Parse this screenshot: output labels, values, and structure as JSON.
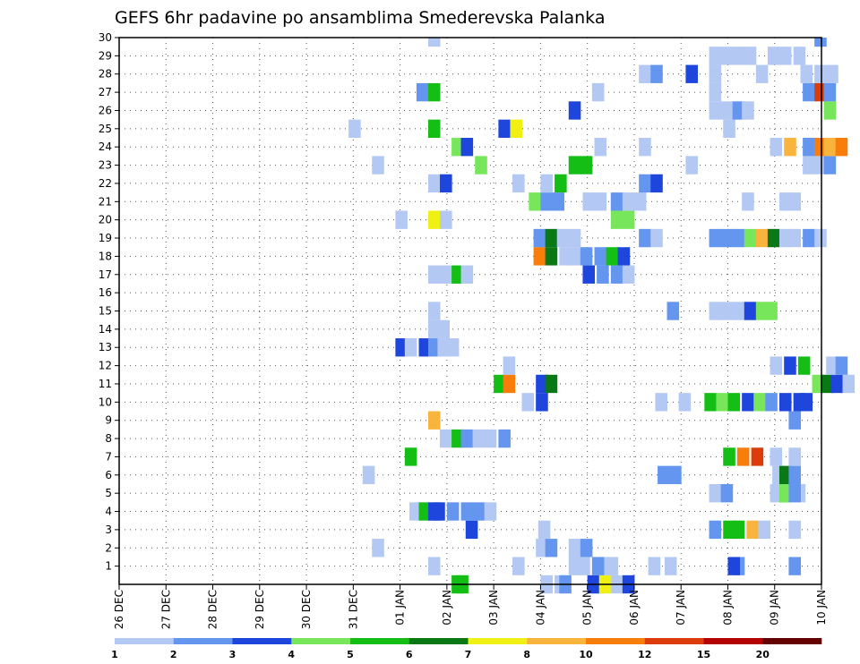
{
  "chart_data": {
    "type": "heatmap",
    "title": "GEFS 6hr padavine po ansamblima Smederevska Palanka",
    "x_tick_labels": [
      "26 DEC",
      "27 DEC",
      "28 DEC",
      "29 DEC",
      "30 DEC",
      "31 DEC",
      "01 JAN",
      "02 JAN",
      "03 JAN",
      "04 JAN",
      "05 JAN",
      "06 JAN",
      "07 JAN",
      "08 JAN",
      "09 JAN",
      "10 JAN"
    ],
    "y_tick_labels": [
      "1",
      "2",
      "3",
      "4",
      "5",
      "6",
      "7",
      "8",
      "9",
      "10",
      "11",
      "12",
      "13",
      "14",
      "15",
      "16",
      "17",
      "18",
      "19",
      "20",
      "21",
      "22",
      "23",
      "24",
      "25",
      "26",
      "27",
      "28",
      "29",
      "30"
    ],
    "x_range_days": [
      0,
      15
    ],
    "y_range": [
      0,
      30
    ],
    "grid": true,
    "color_levels": [
      "1",
      "2",
      "3",
      "4",
      "5",
      "6",
      "7",
      "8",
      "10",
      "12",
      "15",
      "20"
    ],
    "colors": [
      "#b4c8f4",
      "#6496f0",
      "#1e46dc",
      "#78e65a",
      "#14be14",
      "#0a7814",
      "#f0f014",
      "#f8b43c",
      "#f87d0a",
      "#dc3c0a",
      "#b40000",
      "#640000"
    ],
    "cells": [
      [
        9,
        -1,
        1
      ],
      [
        9.3,
        -1,
        1
      ],
      [
        10.5,
        -1,
        1
      ],
      [
        9.4,
        -1,
        2
      ],
      [
        10.1,
        -1,
        2
      ],
      [
        7.1,
        -1,
        5
      ],
      [
        7.2,
        -1,
        5
      ],
      [
        10,
        -1,
        3
      ],
      [
        10.75,
        -1,
        3
      ],
      [
        10.25,
        -1,
        7
      ],
      [
        6.6,
        0,
        1
      ],
      [
        8.4,
        0,
        1
      ],
      [
        9.6,
        0,
        1
      ],
      [
        9.8,
        0,
        1
      ],
      [
        10.1,
        0,
        1
      ],
      [
        10.25,
        0,
        1
      ],
      [
        10.4,
        0,
        1
      ],
      [
        11.3,
        0,
        1
      ],
      [
        11.65,
        0,
        1
      ],
      [
        10.1,
        0,
        2
      ],
      [
        13.1,
        0,
        2
      ],
      [
        14.3,
        0,
        2
      ],
      [
        13,
        0,
        3
      ],
      [
        5.4,
        1,
        1
      ],
      [
        8.9,
        1,
        1
      ],
      [
        9.6,
        1,
        1
      ],
      [
        9.1,
        1,
        2
      ],
      [
        9.85,
        1,
        2
      ],
      [
        8.95,
        2,
        1
      ],
      [
        12.6,
        2,
        2
      ],
      [
        12.9,
        2,
        5
      ],
      [
        13.1,
        2,
        5
      ],
      [
        13.4,
        2,
        8
      ],
      [
        13.65,
        2,
        1
      ],
      [
        14.3,
        2,
        1
      ],
      [
        7.4,
        2,
        3
      ],
      [
        6.2,
        3,
        1
      ],
      [
        6.4,
        3,
        5
      ],
      [
        6.6,
        3,
        3
      ],
      [
        6.7,
        3,
        3
      ],
      [
        7.0,
        3,
        2
      ],
      [
        7.3,
        3,
        2
      ],
      [
        7.55,
        3,
        2
      ],
      [
        7.8,
        3,
        1
      ],
      [
        12.6,
        4,
        1
      ],
      [
        12.85,
        4,
        2
      ],
      [
        13.9,
        4,
        1
      ],
      [
        14.1,
        4,
        5
      ],
      [
        14.4,
        4,
        1
      ],
      [
        14.1,
        4,
        4
      ],
      [
        14.3,
        4,
        2
      ],
      [
        5.2,
        5,
        1
      ],
      [
        11.5,
        5,
        2
      ],
      [
        11.75,
        5,
        2
      ],
      [
        13.95,
        5,
        1
      ],
      [
        14.1,
        5,
        6
      ],
      [
        14.3,
        5,
        2
      ],
      [
        6.1,
        6,
        5
      ],
      [
        12.9,
        6,
        5
      ],
      [
        13.2,
        6,
        9
      ],
      [
        13.5,
        6,
        10
      ],
      [
        13.9,
        6,
        1
      ],
      [
        14.3,
        6,
        1
      ],
      [
        6.85,
        7,
        1
      ],
      [
        7.1,
        7,
        5
      ],
      [
        7.3,
        7,
        2
      ],
      [
        7.55,
        7,
        1
      ],
      [
        7.8,
        7,
        1
      ],
      [
        8.1,
        7,
        2
      ],
      [
        6.6,
        8,
        8
      ],
      [
        14.3,
        8,
        2
      ],
      [
        8.6,
        9,
        1
      ],
      [
        8.9,
        9,
        3
      ],
      [
        11.45,
        9,
        1
      ],
      [
        11.95,
        9,
        1
      ],
      [
        12.5,
        9,
        5
      ],
      [
        12.75,
        9,
        4
      ],
      [
        13.0,
        9,
        5
      ],
      [
        13.3,
        9,
        3
      ],
      [
        13.55,
        9,
        4
      ],
      [
        13.8,
        9,
        2
      ],
      [
        14.1,
        9,
        3
      ],
      [
        14.4,
        9,
        3
      ],
      [
        14.55,
        9,
        3
      ],
      [
        8.0,
        10,
        5
      ],
      [
        8.2,
        10,
        9
      ],
      [
        8.9,
        10,
        3
      ],
      [
        9.1,
        10,
        6
      ],
      [
        14.8,
        10,
        4
      ],
      [
        15.0,
        10,
        6
      ],
      [
        15.2,
        10,
        3
      ],
      [
        15.45,
        10,
        1
      ],
      [
        8.2,
        11,
        1
      ],
      [
        13.9,
        11,
        1
      ],
      [
        14.2,
        11,
        3
      ],
      [
        14.5,
        11,
        5
      ],
      [
        15.1,
        11,
        1
      ],
      [
        15.3,
        11,
        2
      ],
      [
        5.9,
        12,
        3
      ],
      [
        6.1,
        12,
        1
      ],
      [
        6.4,
        12,
        3
      ],
      [
        6.6,
        12,
        2
      ],
      [
        6.8,
        12,
        1
      ],
      [
        7.0,
        12,
        1
      ],
      [
        6.6,
        13,
        1
      ],
      [
        6.8,
        13,
        1
      ],
      [
        6.6,
        14,
        1
      ],
      [
        11.7,
        14,
        2
      ],
      [
        12.6,
        14,
        1
      ],
      [
        12.85,
        14,
        1
      ],
      [
        13.1,
        14,
        1
      ],
      [
        13.35,
        14,
        3
      ],
      [
        13.6,
        14,
        4
      ],
      [
        13.8,
        14,
        4
      ],
      [
        9.9,
        16,
        3
      ],
      [
        10.2,
        16,
        2
      ],
      [
        10.5,
        16,
        2
      ],
      [
        10.75,
        16,
        1
      ],
      [
        6.6,
        16,
        1
      ],
      [
        6.85,
        16,
        1
      ],
      [
        7.1,
        16,
        5
      ],
      [
        7.3,
        16,
        1
      ],
      [
        8.85,
        17,
        9
      ],
      [
        9.1,
        17,
        6
      ],
      [
        9.4,
        17,
        1
      ],
      [
        9.6,
        17,
        1
      ],
      [
        9.85,
        17,
        2
      ],
      [
        10.15,
        17,
        2
      ],
      [
        10.4,
        17,
        5
      ],
      [
        10.65,
        17,
        3
      ],
      [
        8.85,
        18,
        2
      ],
      [
        9.1,
        18,
        6
      ],
      [
        9.35,
        18,
        1
      ],
      [
        9.6,
        18,
        1
      ],
      [
        11.1,
        18,
        2
      ],
      [
        11.35,
        18,
        1
      ],
      [
        12.6,
        18,
        2
      ],
      [
        12.85,
        18,
        2
      ],
      [
        13.1,
        18,
        2
      ],
      [
        13.35,
        18,
        4
      ],
      [
        13.6,
        18,
        8
      ],
      [
        13.85,
        18,
        6
      ],
      [
        14.1,
        18,
        1
      ],
      [
        14.3,
        18,
        1
      ],
      [
        14.6,
        18,
        2
      ],
      [
        14.85,
        18,
        1
      ],
      [
        5.9,
        19,
        1
      ],
      [
        6.6,
        19,
        7
      ],
      [
        6.85,
        19,
        1
      ],
      [
        10.5,
        19,
        4
      ],
      [
        10.75,
        19,
        4
      ],
      [
        8.75,
        20,
        4
      ],
      [
        9.0,
        20,
        2
      ],
      [
        9.25,
        20,
        2
      ],
      [
        9.9,
        20,
        1
      ],
      [
        10.15,
        20,
        1
      ],
      [
        10.5,
        20,
        2
      ],
      [
        10.75,
        20,
        1
      ],
      [
        11.0,
        20,
        1
      ],
      [
        13.3,
        20,
        1
      ],
      [
        14.1,
        20,
        1
      ],
      [
        14.3,
        20,
        1
      ],
      [
        6.6,
        21,
        1
      ],
      [
        6.85,
        21,
        3
      ],
      [
        8.4,
        21,
        1
      ],
      [
        9.0,
        21,
        1
      ],
      [
        9.3,
        21,
        5
      ],
      [
        11.1,
        21,
        2
      ],
      [
        11.35,
        21,
        3
      ],
      [
        5.4,
        22,
        1
      ],
      [
        7.6,
        22,
        4
      ],
      [
        9.6,
        22,
        5
      ],
      [
        9.85,
        22,
        5
      ],
      [
        14.6,
        22,
        1
      ],
      [
        14.85,
        22,
        1
      ],
      [
        15.05,
        22,
        2
      ],
      [
        12.1,
        22,
        1
      ],
      [
        7.1,
        23,
        4
      ],
      [
        7.3,
        23,
        3
      ],
      [
        10.15,
        23,
        1
      ],
      [
        11.1,
        23,
        1
      ],
      [
        13.9,
        23,
        1
      ],
      [
        14.2,
        23,
        8
      ],
      [
        14.6,
        23,
        2
      ],
      [
        14.85,
        23,
        9
      ],
      [
        15.05,
        23,
        8
      ],
      [
        15.3,
        23,
        9
      ],
      [
        4.9,
        24,
        1
      ],
      [
        6.6,
        24,
        5
      ],
      [
        8.1,
        24,
        3
      ],
      [
        8.35,
        24,
        7
      ],
      [
        12.9,
        24,
        1
      ],
      [
        9.6,
        25,
        3
      ],
      [
        12.6,
        25,
        1
      ],
      [
        12.85,
        25,
        1
      ],
      [
        13.1,
        25,
        2
      ],
      [
        13.3,
        25,
        1
      ],
      [
        15.05,
        25,
        4
      ],
      [
        6.35,
        26,
        2
      ],
      [
        6.6,
        26,
        5
      ],
      [
        10.1,
        26,
        1
      ],
      [
        12.6,
        26,
        1
      ],
      [
        14.6,
        26,
        2
      ],
      [
        14.85,
        26,
        10
      ],
      [
        15.05,
        26,
        2
      ],
      [
        11.1,
        27,
        1
      ],
      [
        11.35,
        27,
        2
      ],
      [
        12.1,
        27,
        3
      ],
      [
        12.6,
        27,
        1
      ],
      [
        13.6,
        27,
        1
      ],
      [
        14.55,
        27,
        1
      ],
      [
        14.85,
        27,
        1
      ],
      [
        15.1,
        27,
        1
      ],
      [
        12.6,
        28,
        1
      ],
      [
        12.85,
        28,
        1
      ],
      [
        13.1,
        28,
        1
      ],
      [
        13.35,
        28,
        1
      ],
      [
        13.85,
        28,
        1
      ],
      [
        14.1,
        28,
        1
      ],
      [
        14.4,
        28,
        1
      ],
      [
        6.6,
        29,
        1
      ],
      [
        14.85,
        29,
        2
      ]
    ]
  }
}
